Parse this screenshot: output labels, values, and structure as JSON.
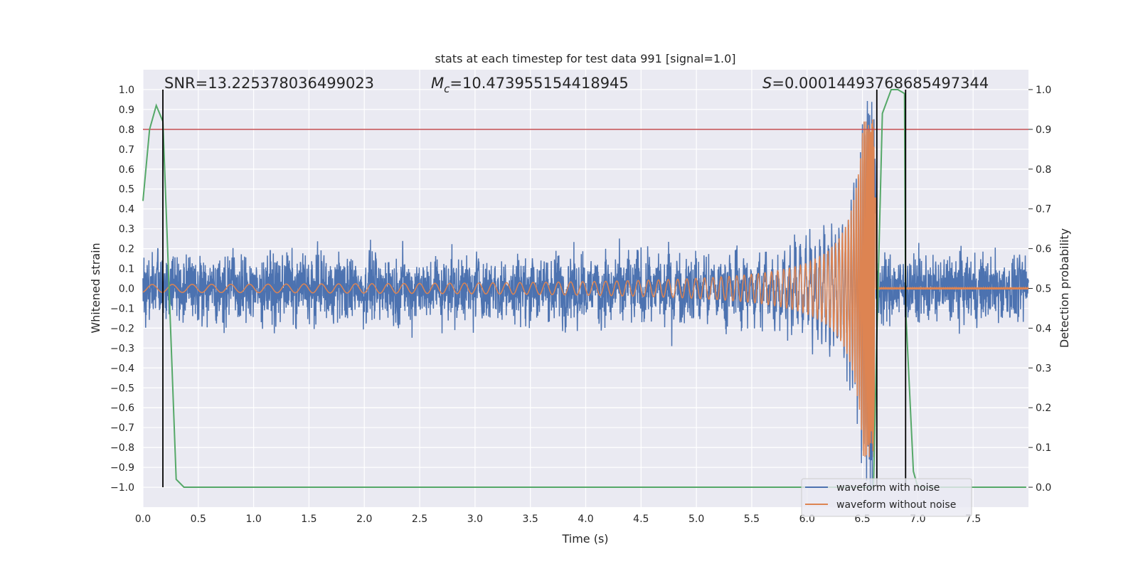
{
  "chart_data": {
    "type": "line",
    "title": "stats at each timestep for test data 991 [signal=1.0]",
    "xlabel": "Time (s)",
    "ylabel": "Whitened strain",
    "y2label": "Detection probability",
    "xlim": [
      0.0,
      8.0
    ],
    "ylim": [
      -1.1,
      1.1
    ],
    "y2lim": [
      -0.05,
      1.05
    ],
    "xticks": [
      "0.0",
      "0.5",
      "1.0",
      "1.5",
      "2.0",
      "2.5",
      "3.0",
      "3.5",
      "4.0",
      "4.5",
      "5.0",
      "5.5",
      "6.0",
      "6.5",
      "7.0",
      "7.5"
    ],
    "yticks": [
      "1.0",
      "0.9",
      "0.8",
      "0.7",
      "0.6",
      "0.5",
      "0.4",
      "0.3",
      "0.2",
      "0.1",
      "0.0",
      "−0.1",
      "−0.2",
      "−0.3",
      "−0.4",
      "−0.5",
      "−0.6",
      "−0.7",
      "−0.8",
      "−0.9",
      "−1.0"
    ],
    "y2ticks": [
      "0.0",
      "0.1",
      "0.2",
      "0.3",
      "0.4",
      "0.5",
      "0.6",
      "0.7",
      "0.8",
      "0.9",
      "1.0"
    ],
    "annotations": {
      "snr": "SNR=13.225378036499023",
      "mc_symbol": "M",
      "mc_sub": "c",
      "mc_value": "=10.473955154418945",
      "s_symbol": "S",
      "s_value": "=0.00014493768685497344"
    },
    "series": [
      {
        "name": "waveform with noise",
        "color": "#4c72b0",
        "noise_amplitude": 0.2,
        "merger_time": 6.62
      },
      {
        "name": "waveform without noise",
        "color": "#dd8452",
        "merger_time": 6.62,
        "peak_amplitude": 0.85
      },
      {
        "name": "detection probability",
        "color": "#55a868",
        "x": [
          0.0,
          0.06,
          0.12,
          0.18,
          0.3,
          0.37,
          0.45,
          6.6,
          6.63,
          6.68,
          6.76,
          6.82,
          6.88,
          6.89,
          6.96,
          7.0,
          7.1,
          7.98
        ],
        "y": [
          0.72,
          0.9,
          0.96,
          0.92,
          0.02,
          0.0,
          0.0,
          0.0,
          0.38,
          0.94,
          1.0,
          1.0,
          0.99,
          0.45,
          0.04,
          0.0,
          0.0,
          0.0
        ]
      }
    ],
    "threshold": {
      "value": 0.9,
      "axis": "y2",
      "color": "#c44e52"
    },
    "vlines": [
      0.18,
      6.63,
      6.89
    ],
    "vline_color": "#000000",
    "legend": [
      "waveform with noise",
      "waveform without noise"
    ],
    "legend_position": "lower-right",
    "grid": true
  }
}
